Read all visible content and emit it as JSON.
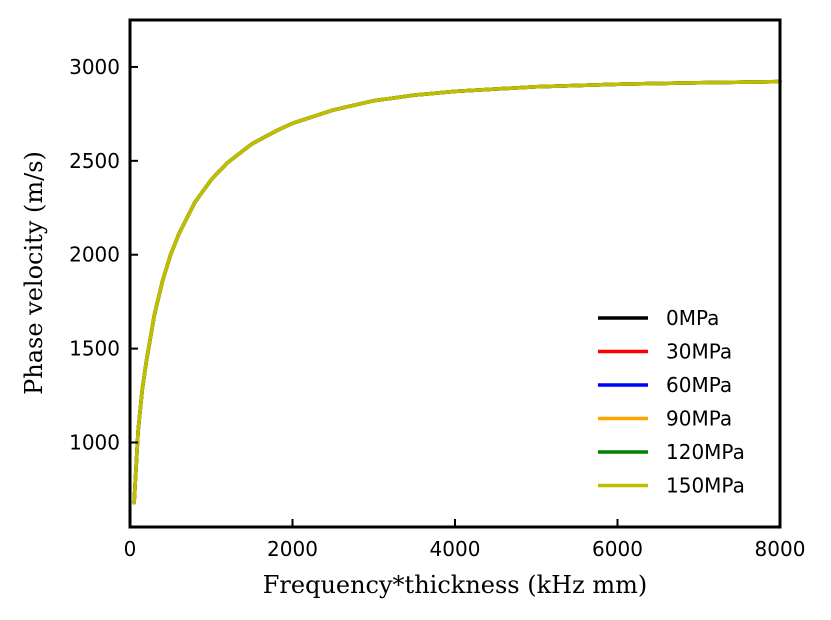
{
  "chart_data": {
    "type": "line",
    "xlabel": "Frequency*thickness (kHz mm)",
    "ylabel": "Phase velocity (m/s)",
    "xlim": [
      0,
      8000
    ],
    "ylim": [
      550,
      3250
    ],
    "xticks": [
      0,
      2000,
      4000,
      6000,
      8000
    ],
    "yticks": [
      1000,
      1500,
      2000,
      2500,
      3000
    ],
    "grid": false,
    "legend_position": "lower-right",
    "x": [
      50,
      100,
      150,
      200,
      300,
      400,
      500,
      600,
      800,
      1000,
      1200,
      1500,
      1800,
      2000,
      2500,
      3000,
      3500,
      4000,
      5000,
      6000,
      7000,
      8000
    ],
    "series": [
      {
        "name": "0MPa",
        "color": "#000000",
        "values": [
          680,
          1060,
          1280,
          1430,
          1680,
          1860,
          2000,
          2110,
          2280,
          2400,
          2490,
          2590,
          2660,
          2700,
          2770,
          2820,
          2850,
          2870,
          2895,
          2908,
          2916,
          2922
        ]
      },
      {
        "name": "30MPa",
        "color": "#ff0000",
        "values": [
          680,
          1060,
          1280,
          1430,
          1680,
          1860,
          2000,
          2110,
          2280,
          2400,
          2490,
          2590,
          2660,
          2700,
          2770,
          2820,
          2850,
          2870,
          2895,
          2908,
          2916,
          2922
        ]
      },
      {
        "name": "60MPa",
        "color": "#0000ff",
        "values": [
          680,
          1060,
          1280,
          1430,
          1680,
          1860,
          2000,
          2110,
          2280,
          2400,
          2490,
          2590,
          2660,
          2700,
          2770,
          2820,
          2850,
          2870,
          2895,
          2908,
          2916,
          2922
        ]
      },
      {
        "name": "90MPa",
        "color": "#ffa500",
        "values": [
          680,
          1060,
          1280,
          1430,
          1680,
          1860,
          2000,
          2110,
          2280,
          2400,
          2490,
          2590,
          2660,
          2700,
          2770,
          2820,
          2850,
          2870,
          2895,
          2908,
          2916,
          2922
        ]
      },
      {
        "name": "120MPa",
        "color": "#008000",
        "values": [
          680,
          1060,
          1280,
          1430,
          1680,
          1860,
          2000,
          2110,
          2280,
          2400,
          2490,
          2590,
          2660,
          2700,
          2770,
          2820,
          2850,
          2870,
          2895,
          2908,
          2916,
          2922
        ]
      },
      {
        "name": "150MPa",
        "color": "#bfbf00",
        "values": [
          680,
          1060,
          1280,
          1430,
          1680,
          1860,
          2000,
          2110,
          2280,
          2400,
          2490,
          2590,
          2660,
          2700,
          2770,
          2820,
          2850,
          2870,
          2895,
          2908,
          2916,
          2922
        ]
      }
    ]
  }
}
